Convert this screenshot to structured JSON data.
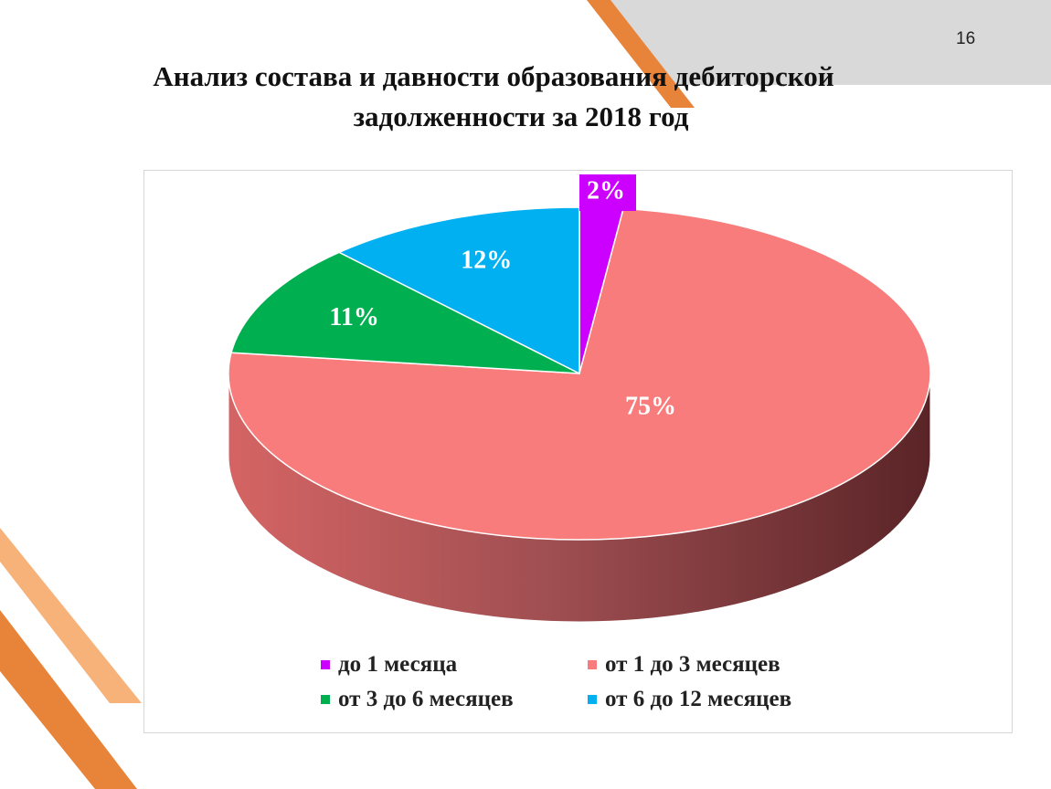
{
  "page": {
    "slide_number": "16",
    "title_line1": "Анализ состава и давности образования дебиторской",
    "title_line2": "задолженности за 2018 год"
  },
  "colors": {
    "accent_orange": "#e8843a",
    "accent_light_orange": "#f7b27a",
    "header_gray": "#d9d9d9"
  },
  "chart_data": {
    "type": "pie",
    "three_d": true,
    "categories": [
      "до 1 месяца",
      "от 1 до 3 месяцев",
      "от 3 до 6 месяцев",
      "от 6 до 12 месяцев"
    ],
    "values": [
      2,
      75,
      11,
      12
    ],
    "labels": [
      "2%",
      "75%",
      "11%",
      "12%"
    ],
    "colors": [
      "#cc00ff",
      "#f87c7c",
      "#00b050",
      "#00b0f0"
    ],
    "legend": [
      {
        "label": "до 1 месяца",
        "color": "#cc00ff"
      },
      {
        "label": "от 1 до 3 месяцев",
        "color": "#f87c7c"
      },
      {
        "label": "от 3 до 6 месяцев",
        "color": "#00b050"
      },
      {
        "label": "от 6 до 12 месяцев",
        "color": "#00b0f0"
      }
    ],
    "legend_position": "bottom"
  }
}
